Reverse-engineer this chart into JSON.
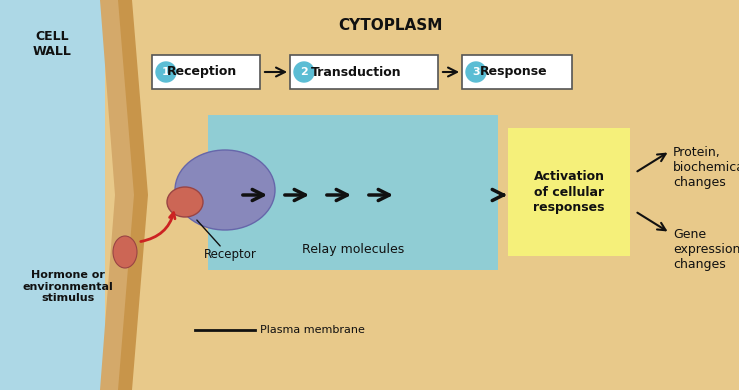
{
  "bg_outer": "#add8e6",
  "bg_cell_wall_tan": "#d4a96a",
  "bg_cell_wall_stripe": "#c8954a",
  "bg_cytoplasm": "#e8c98a",
  "bg_relay_box": "#90cdd4",
  "bg_activation_box": "#f5f07a",
  "bg_step_boxes": "#ffffff",
  "circle_color": "#5bbdd4",
  "receptor_body_color": "#8888bb",
  "receptor_knob_color": "#cc6655",
  "hormone_color": "#cc6655",
  "cell_wall_label": "CELL\nWALL",
  "cytoplasm_label": "CYTOPLASM",
  "step1_label": "Reception",
  "step2_label": "Transduction",
  "step3_label": "Response",
  "relay_label": "Relay molecules",
  "activation_label": "Activation\nof cellular\nresponses",
  "receptor_label": "Receptor",
  "hormone_label": "Hormone or\nenvironmental\nstimulus",
  "plasma_membrane_label": "Plasma membrane",
  "output1": "Protein,\nbiochemical\nchanges",
  "output2": "Gene\nexpression\nchanges",
  "arrow_color": "#111111",
  "text_color": "#111111",
  "border_color": "#555555"
}
